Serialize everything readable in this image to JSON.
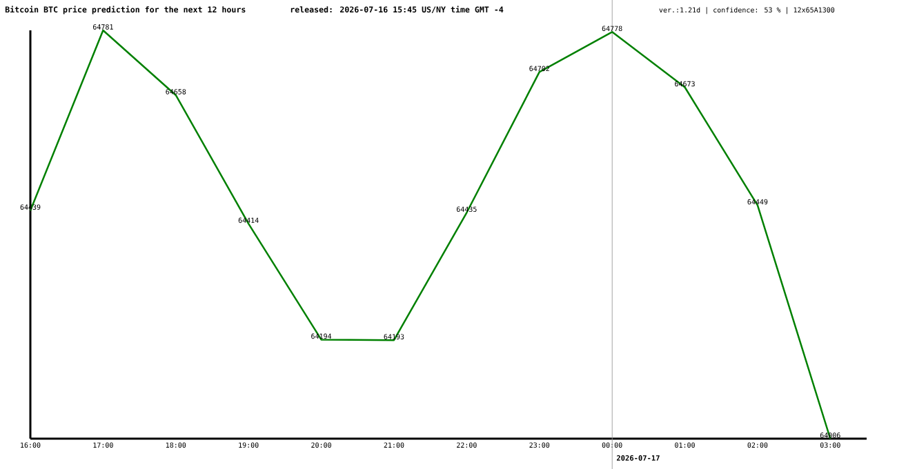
{
  "chart_data": {
    "type": "line",
    "title": "Bitcoin BTC price prediction for the next 12 hours",
    "subtitle": "released: 2026-07-16 15:45 US/NY time GMT -4",
    "annotations": [
      "ver.:1.21d | confidence: 53 % | 12x65A1300"
    ],
    "x": [
      "2026-07-16T16:00",
      "2026-07-16T17:00",
      "2026-07-16T18:00",
      "2026-07-16T19:00",
      "2026-07-16T20:00",
      "2026-07-16T21:00",
      "2026-07-16T22:00",
      "2026-07-16T23:00",
      "2026-07-17T00:00",
      "2026-07-17T01:00",
      "2026-07-17T02:00",
      "2026-07-17T03:00"
    ],
    "series": [
      {
        "color": "#008000",
        "values": [
          64439,
          64781,
          64658,
          64414,
          64194,
          64193,
          64435,
          64702,
          64778,
          64673,
          64449,
          64006
        ]
      }
    ],
    "xlim": [
      "2026-07-16T16:00",
      "2026-07-17T03:30"
    ],
    "xticks": [
      {
        "value": "2026-07-16T16:00",
        "label": "16:00"
      },
      {
        "value": "2026-07-16T17:00",
        "label": "17:00"
      },
      {
        "value": "2026-07-16T18:00",
        "label": "18:00"
      },
      {
        "value": "2026-07-16T19:00",
        "label": "19:00"
      },
      {
        "value": "2026-07-16T20:00",
        "label": "20:00"
      },
      {
        "value": "2026-07-16T21:00",
        "label": "21:00"
      },
      {
        "value": "2026-07-16T22:00",
        "label": "22:00"
      },
      {
        "value": "2026-07-16T23:00",
        "label": "23:00"
      },
      {
        "value": "2026-07-17T00:00",
        "label": "00:00"
      },
      {
        "value": "2026-07-17T01:00",
        "label": "01:00"
      },
      {
        "value": "2026-07-17T02:00",
        "label": "02:00"
      },
      {
        "value": "2026-07-17T03:00",
        "label": "03:00"
      }
    ],
    "ylim": [
      64006,
      64781
    ],
    "tick_labels": "x",
    "data_labels": true,
    "line_style": "solid",
    "ref_lines": [
      {
        "axis": "x",
        "value": "2026-07-17",
        "label": "2026-07-17",
        "color": "#999999"
      }
    ]
  }
}
